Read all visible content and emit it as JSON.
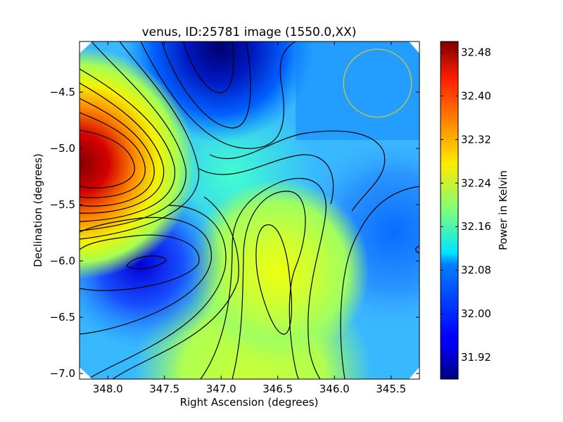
{
  "chart_data": {
    "type": "heatmap",
    "title": "venus, ID:25781 image (1550.0,XX)",
    "xlabel": "Right Ascension (degrees)",
    "ylabel": "Declination (degrees)",
    "xlim": [
      348.25,
      345.25
    ],
    "ylim": [
      -7.05,
      -4.05
    ],
    "x_ticks": [
      348.0,
      347.5,
      347.0,
      346.5,
      346.0,
      345.5
    ],
    "x_tick_labels": [
      "348.0",
      "347.5",
      "347.0",
      "346.5",
      "346.0",
      "345.5"
    ],
    "y_ticks": [
      -4.5,
      -5.0,
      -5.5,
      -6.0,
      -6.5,
      -7.0
    ],
    "y_tick_labels": [
      "−4.5",
      "−5.0",
      "−5.5",
      "−6.0",
      "−6.5",
      "−7.0"
    ],
    "colorbar": {
      "label": "Power in Kelvin",
      "range": [
        31.88,
        32.5
      ],
      "ticks": [
        31.92,
        32.0,
        32.08,
        32.16,
        32.24,
        32.32,
        32.4,
        32.48
      ],
      "tick_labels": [
        "31.92",
        "32.00",
        "32.08",
        "32.16",
        "32.24",
        "32.32",
        "32.40",
        "32.48"
      ],
      "colormap": "jet"
    },
    "features": [
      {
        "kind": "maximum",
        "ra": 348.15,
        "dec": -5.1,
        "value": 32.48
      },
      {
        "kind": "minimum",
        "ra": 347.05,
        "dec": -4.2,
        "value": 31.9
      },
      {
        "kind": "minimum",
        "ra": 347.75,
        "dec": -6.0,
        "value": 31.97
      },
      {
        "kind": "local-maximum",
        "ra": 346.5,
        "dec": -6.0,
        "value": 32.28
      }
    ],
    "beam_circle": {
      "ra": 345.62,
      "dec": -4.42,
      "radius_deg": 0.3,
      "color": "#c8c832"
    },
    "contour_color": "#000000"
  }
}
